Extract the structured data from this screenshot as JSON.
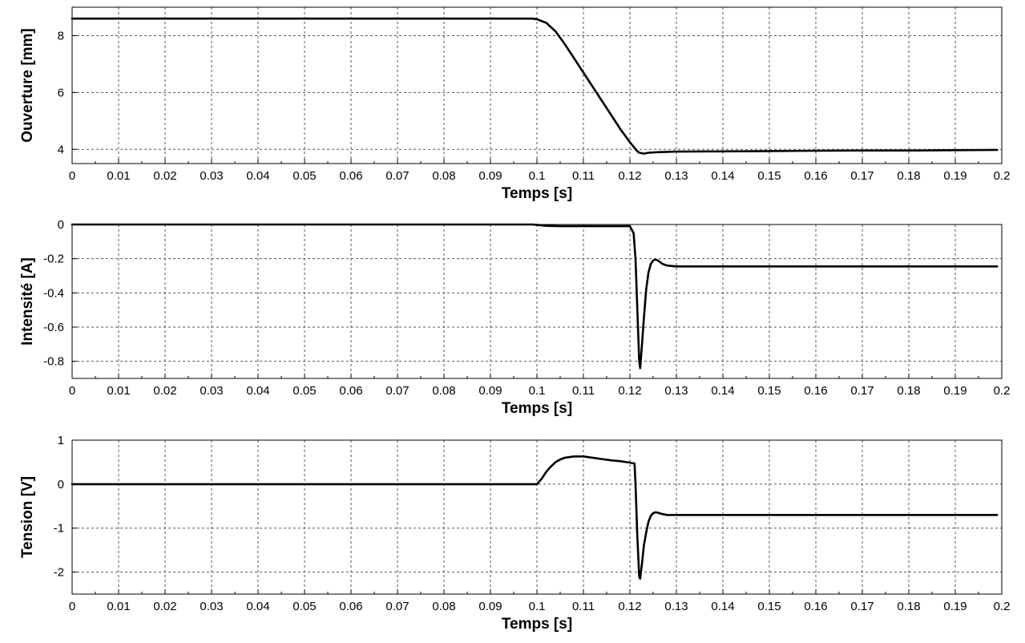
{
  "chart_data": [
    {
      "type": "line",
      "xlabel": "Temps [s]",
      "ylabel": "Ouverture [mm]",
      "xlim": [
        0,
        0.2
      ],
      "ylim": [
        3.5,
        9
      ],
      "xticks": [
        "0",
        "0.01",
        "0.02",
        "0.03",
        "0.04",
        "0.05",
        "0.06",
        "0.07",
        "0.08",
        "0.09",
        "0.1",
        "0.11",
        "0.12",
        "0.13",
        "0.14",
        "0.15",
        "0.16",
        "0.17",
        "0.18",
        "0.19",
        "0.2"
      ],
      "yticks": [
        {
          "v": 4,
          "label": "4"
        },
        {
          "v": 6,
          "label": "6"
        },
        {
          "v": 8,
          "label": "8"
        }
      ],
      "ygrid": [
        4,
        6,
        8
      ],
      "grid": true,
      "series": [
        {
          "x": [
            0,
            0.099,
            0.1,
            0.102,
            0.104,
            0.106,
            0.108,
            0.11,
            0.112,
            0.114,
            0.116,
            0.118,
            0.12,
            0.1215,
            0.122,
            0.123,
            0.124,
            0.126,
            0.13,
            0.14,
            0.15,
            0.16,
            0.17,
            0.18,
            0.19,
            0.199
          ],
          "y": [
            8.6,
            8.6,
            8.58,
            8.45,
            8.15,
            7.7,
            7.2,
            6.7,
            6.2,
            5.7,
            5.2,
            4.7,
            4.25,
            3.95,
            3.88,
            3.85,
            3.88,
            3.9,
            3.92,
            3.93,
            3.94,
            3.95,
            3.96,
            3.96,
            3.97,
            3.98
          ]
        }
      ]
    },
    {
      "type": "line",
      "xlabel": "Temps [s]",
      "ylabel": "Intensité  [A]",
      "xlim": [
        0,
        0.2
      ],
      "ylim": [
        -0.9,
        0
      ],
      "xticks": [
        "0",
        "0.01",
        "0.02",
        "0.03",
        "0.04",
        "0.05",
        "0.06",
        "0.07",
        "0.08",
        "0.09",
        "0.1",
        "0.11",
        "0.12",
        "0.13",
        "0.14",
        "0.15",
        "0.16",
        "0.17",
        "0.18",
        "0.19",
        "0.2"
      ],
      "yticks": [
        {
          "v": 0,
          "label": "0"
        },
        {
          "v": -0.2,
          "label": "-0.2"
        },
        {
          "v": -0.4,
          "label": "-0.4"
        },
        {
          "v": -0.6,
          "label": "-0.6"
        },
        {
          "v": -0.8,
          "label": "-0.8"
        }
      ],
      "ygrid": [
        -0.2,
        -0.4,
        -0.6,
        -0.8
      ],
      "grid": true,
      "series": [
        {
          "x": [
            0,
            0.099,
            0.1,
            0.102,
            0.105,
            0.11,
            0.115,
            0.12,
            0.1208,
            0.1212,
            0.1216,
            0.122,
            0.1222,
            0.1226,
            0.123,
            0.1235,
            0.124,
            0.1245,
            0.125,
            0.1255,
            0.126,
            0.1265,
            0.127,
            0.128,
            0.13,
            0.14,
            0.16,
            0.18,
            0.199
          ],
          "y": [
            0,
            0,
            -0.002,
            -0.008,
            -0.01,
            -0.01,
            -0.01,
            -0.01,
            -0.05,
            -0.2,
            -0.5,
            -0.8,
            -0.84,
            -0.7,
            -0.55,
            -0.38,
            -0.28,
            -0.23,
            -0.21,
            -0.205,
            -0.21,
            -0.22,
            -0.23,
            -0.24,
            -0.245,
            -0.245,
            -0.245,
            -0.245,
            -0.245
          ]
        }
      ]
    },
    {
      "type": "line",
      "xlabel": "Temps [s]",
      "ylabel": "Tension [V]",
      "xlim": [
        0,
        0.2
      ],
      "ylim": [
        -2.5,
        1
      ],
      "xticks": [
        "0",
        "0.01",
        "0.02",
        "0.03",
        "0.04",
        "0.05",
        "0.06",
        "0.07",
        "0.08",
        "0.09",
        "0.1",
        "0.11",
        "0.12",
        "0.13",
        "0.14",
        "0.15",
        "0.16",
        "0.17",
        "0.18",
        "0.19",
        "0.2"
      ],
      "yticks": [
        {
          "v": 1,
          "label": "1"
        },
        {
          "v": 0,
          "label": "0"
        },
        {
          "v": -1,
          "label": "-1"
        },
        {
          "v": -2,
          "label": "-2"
        }
      ],
      "ygrid": [
        0,
        -1,
        -2
      ],
      "grid": true,
      "series": [
        {
          "x": [
            0,
            0.1,
            0.101,
            0.102,
            0.103,
            0.104,
            0.105,
            0.106,
            0.108,
            0.11,
            0.112,
            0.114,
            0.116,
            0.118,
            0.12,
            0.121,
            0.1212,
            0.1216,
            0.122,
            0.1222,
            0.1226,
            0.123,
            0.1235,
            0.124,
            0.1245,
            0.125,
            0.1255,
            0.126,
            0.127,
            0.128,
            0.13,
            0.14,
            0.16,
            0.18,
            0.199
          ],
          "y": [
            0,
            0,
            0.12,
            0.28,
            0.4,
            0.5,
            0.56,
            0.6,
            0.63,
            0.63,
            0.6,
            0.57,
            0.54,
            0.52,
            0.49,
            0.47,
            0.0,
            -1.2,
            -2.1,
            -2.15,
            -1.8,
            -1.4,
            -1.1,
            -0.85,
            -0.72,
            -0.66,
            -0.64,
            -0.65,
            -0.68,
            -0.7,
            -0.7,
            -0.7,
            -0.7,
            -0.7,
            -0.7
          ]
        }
      ]
    }
  ]
}
